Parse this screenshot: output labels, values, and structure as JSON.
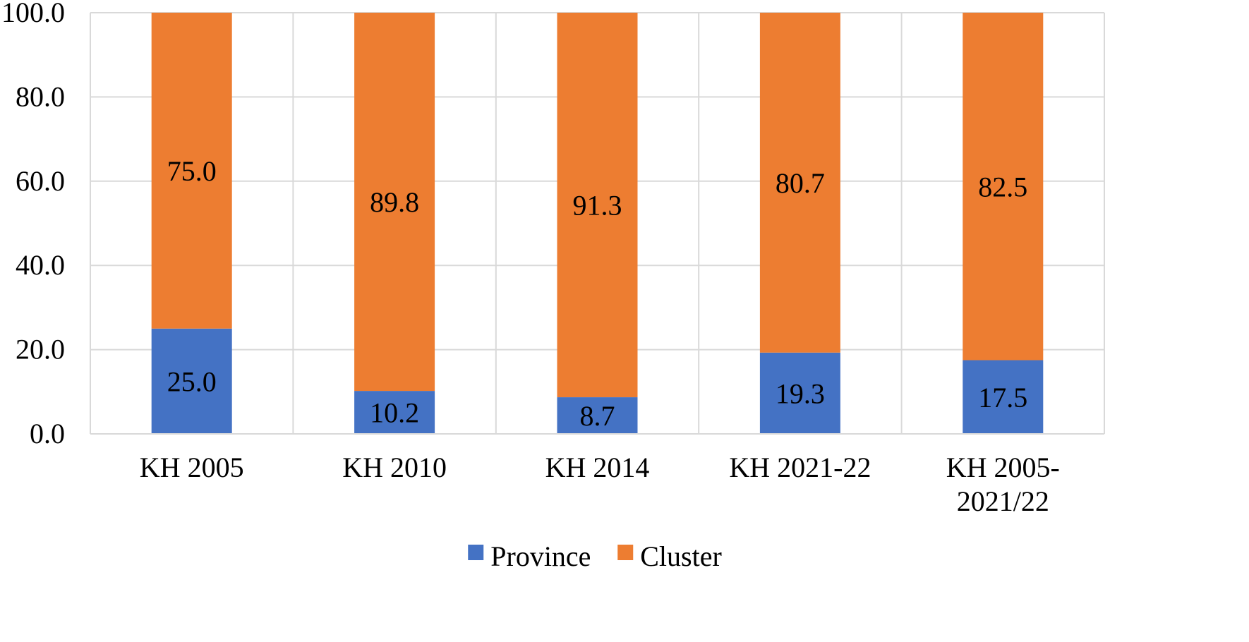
{
  "chart_data": {
    "type": "bar",
    "stacked": true,
    "categories": [
      [
        "KH 2005"
      ],
      [
        "KH 2010"
      ],
      [
        "KH 2014"
      ],
      [
        "KH 2021-22"
      ],
      [
        "KH 2005-",
        "2021/22"
      ]
    ],
    "series": [
      {
        "name": "Province",
        "color": "#4472C4",
        "values": [
          25.0,
          10.2,
          8.7,
          19.3,
          17.5
        ],
        "labels": [
          "25.0",
          "10.2",
          "8.7",
          "19.3",
          "17.5"
        ]
      },
      {
        "name": "Cluster",
        "color": "#ED7D31",
        "values": [
          75.0,
          89.8,
          91.3,
          80.7,
          82.5
        ],
        "labels": [
          "75.0",
          "89.8",
          "91.3",
          "80.7",
          "82.5"
        ]
      }
    ],
    "ylim": [
      0,
      100
    ],
    "yticks": [
      0,
      20,
      40,
      60,
      80,
      100
    ],
    "ytick_labels": [
      "0.0",
      "20.0",
      "40.0",
      "60.0",
      "80.0",
      "100.0"
    ],
    "grid": true,
    "gridline_color": "#D9D9D9",
    "legend_position": "bottom",
    "title": "",
    "xlabel": "",
    "ylabel": ""
  }
}
